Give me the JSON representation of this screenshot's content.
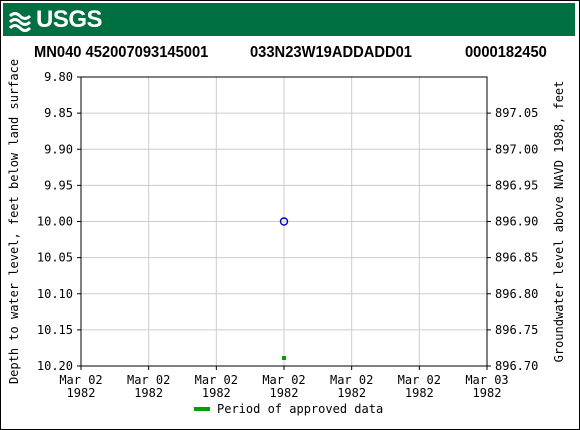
{
  "header": {
    "logo_text": "USGS",
    "site_id": "MN040 452007093145001",
    "location_id": "033N23W19ADDADD01",
    "station_no": "0000182450"
  },
  "colors": {
    "brand_green": "#006f41",
    "point_blue": "#0000cc",
    "approved_green": "#00a000"
  },
  "chart_data": {
    "type": "scatter",
    "title": "",
    "ylabel": "Depth to water level, feet below land surface",
    "y2label": "Groundwater level above NAVD 1988, feet",
    "ylim": [
      10.2,
      9.8
    ],
    "y_ticks": [
      "9.80",
      "9.85",
      "9.90",
      "9.95",
      "10.00",
      "10.05",
      "10.10",
      "10.15",
      "10.20"
    ],
    "y2lim": [
      896.7,
      897.1
    ],
    "y2_ticks": [
      "897.05",
      "897.00",
      "896.95",
      "896.90",
      "896.85",
      "896.80",
      "896.75",
      "896.70"
    ],
    "x_ticks": [
      {
        "line1": "Mar 02",
        "line2": "1982"
      },
      {
        "line1": "Mar 02",
        "line2": "1982"
      },
      {
        "line1": "Mar 02",
        "line2": "1982"
      },
      {
        "line1": "Mar 02",
        "line2": "1982"
      },
      {
        "line1": "Mar 02",
        "line2": "1982"
      },
      {
        "line1": "Mar 02",
        "line2": "1982"
      },
      {
        "line1": "Mar 03",
        "line2": "1982"
      }
    ],
    "points": [
      {
        "date": "1982-03-02",
        "depth": 10.0
      }
    ],
    "approved_periods": [
      {
        "date": "1982-03-02"
      }
    ],
    "legend": {
      "label": "Period of approved data",
      "placement": "bottom"
    },
    "grid": true
  }
}
